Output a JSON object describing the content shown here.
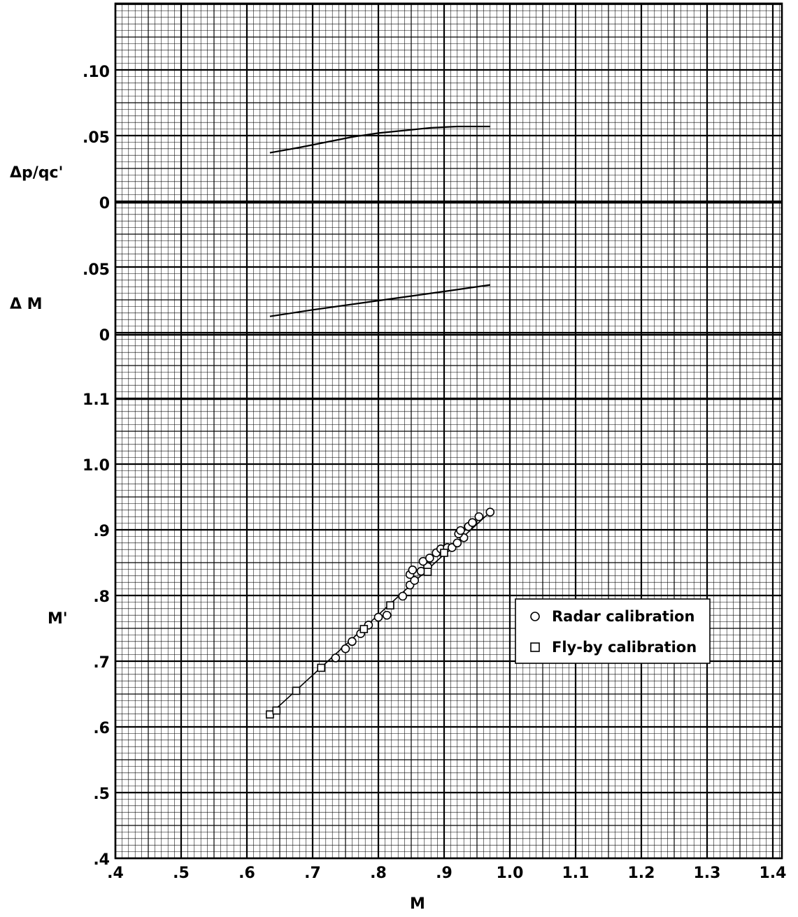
{
  "chart_data": [
    {
      "type": "line",
      "panel": "top",
      "ylabel": "Δp/qᴄ'",
      "ylim": [
        0,
        0.15
      ],
      "yticks": [
        {
          "value": 0,
          "label": "0"
        },
        {
          "value": 0.05,
          "label": ".05"
        },
        {
          "value": 0.1,
          "label": ".10"
        }
      ],
      "xlim": [
        0.4,
        1.4
      ],
      "grid": true,
      "series": [
        {
          "x": [
            0.635,
            0.68,
            0.72,
            0.76,
            0.8,
            0.84,
            0.88,
            0.92,
            0.94,
            0.97
          ],
          "y": [
            0.038,
            0.042,
            0.046,
            0.05,
            0.053,
            0.055,
            0.057,
            0.058,
            0.058,
            0.058
          ]
        }
      ]
    },
    {
      "type": "line",
      "panel": "middle",
      "ylabel": "Δ M",
      "ylim": [
        0,
        0.1
      ],
      "yticks": [
        {
          "value": 0,
          "label": "0"
        },
        {
          "value": 0.05,
          "label": ".05"
        }
      ],
      "xlim": [
        0.4,
        1.4
      ],
      "grid": true,
      "series": [
        {
          "x": [
            0.635,
            0.7,
            0.8,
            0.9,
            0.97
          ],
          "y": [
            0.014,
            0.019,
            0.026,
            0.033,
            0.038
          ]
        }
      ]
    },
    {
      "type": "scatter",
      "panel": "bottom",
      "xlabel": "M",
      "ylabel": "M'",
      "xlim": [
        0.4,
        1.4
      ],
      "ylim": [
        0.4,
        1.1
      ],
      "xticks": [
        {
          "value": 0.4,
          "label": ".4"
        },
        {
          "value": 0.5,
          "label": ".5"
        },
        {
          "value": 0.6,
          "label": ".6"
        },
        {
          "value": 0.7,
          "label": ".7"
        },
        {
          "value": 0.8,
          "label": ".8"
        },
        {
          "value": 0.9,
          "label": ".9"
        },
        {
          "value": 1.0,
          "label": "1.0"
        },
        {
          "value": 1.1,
          "label": "1.1"
        },
        {
          "value": 1.2,
          "label": "1.2"
        },
        {
          "value": 1.3,
          "label": "1.3"
        },
        {
          "value": 1.4,
          "label": "1.4"
        }
      ],
      "yticks": [
        {
          "value": 0.4,
          "label": ".4"
        },
        {
          "value": 0.5,
          "label": ".5"
        },
        {
          "value": 0.6,
          "label": ".6"
        },
        {
          "value": 0.7,
          "label": ".7"
        },
        {
          "value": 0.8,
          "label": ".8"
        },
        {
          "value": 0.9,
          "label": ".9"
        },
        {
          "value": 1.0,
          "label": "1.0"
        },
        {
          "value": 1.1,
          "label": "1.1"
        }
      ],
      "grid": true,
      "legend": "right",
      "fairing": {
        "x": [
          0.635,
          0.97
        ],
        "y": [
          0.62,
          0.928
        ]
      },
      "series": [
        {
          "name": "Radar calibration",
          "marker": "circle",
          "points": [
            {
              "x": 0.735,
              "y": 0.706
            },
            {
              "x": 0.75,
              "y": 0.72
            },
            {
              "x": 0.76,
              "y": 0.731
            },
            {
              "x": 0.773,
              "y": 0.743
            },
            {
              "x": 0.785,
              "y": 0.756
            },
            {
              "x": 0.8,
              "y": 0.768
            },
            {
              "x": 0.813,
              "y": 0.771
            },
            {
              "x": 0.837,
              "y": 0.8
            },
            {
              "x": 0.848,
              "y": 0.817
            },
            {
              "x": 0.855,
              "y": 0.824
            },
            {
              "x": 0.848,
              "y": 0.833
            },
            {
              "x": 0.852,
              "y": 0.84
            },
            {
              "x": 0.865,
              "y": 0.838
            },
            {
              "x": 0.875,
              "y": 0.845
            },
            {
              "x": 0.868,
              "y": 0.853
            },
            {
              "x": 0.878,
              "y": 0.858
            },
            {
              "x": 0.888,
              "y": 0.866
            },
            {
              "x": 0.895,
              "y": 0.872
            },
            {
              "x": 0.905,
              "y": 0.874
            },
            {
              "x": 0.912,
              "y": 0.874
            },
            {
              "x": 0.92,
              "y": 0.881
            },
            {
              "x": 0.93,
              "y": 0.889
            },
            {
              "x": 0.922,
              "y": 0.895
            },
            {
              "x": 0.925,
              "y": 0.9
            },
            {
              "x": 0.937,
              "y": 0.906
            },
            {
              "x": 0.943,
              "y": 0.912
            },
            {
              "x": 0.953,
              "y": 0.921
            },
            {
              "x": 0.97,
              "y": 0.928
            }
          ]
        },
        {
          "name": "Fly-by calibration",
          "marker": "square",
          "points": [
            {
              "x": 0.635,
              "y": 0.62
            },
            {
              "x": 0.645,
              "y": 0.626
            },
            {
              "x": 0.675,
              "y": 0.656
            },
            {
              "x": 0.713,
              "y": 0.691
            },
            {
              "x": 0.778,
              "y": 0.75
            },
            {
              "x": 0.818,
              "y": 0.786
            },
            {
              "x": 0.875,
              "y": 0.837
            },
            {
              "x": 0.9,
              "y": 0.866
            }
          ]
        }
      ]
    }
  ]
}
